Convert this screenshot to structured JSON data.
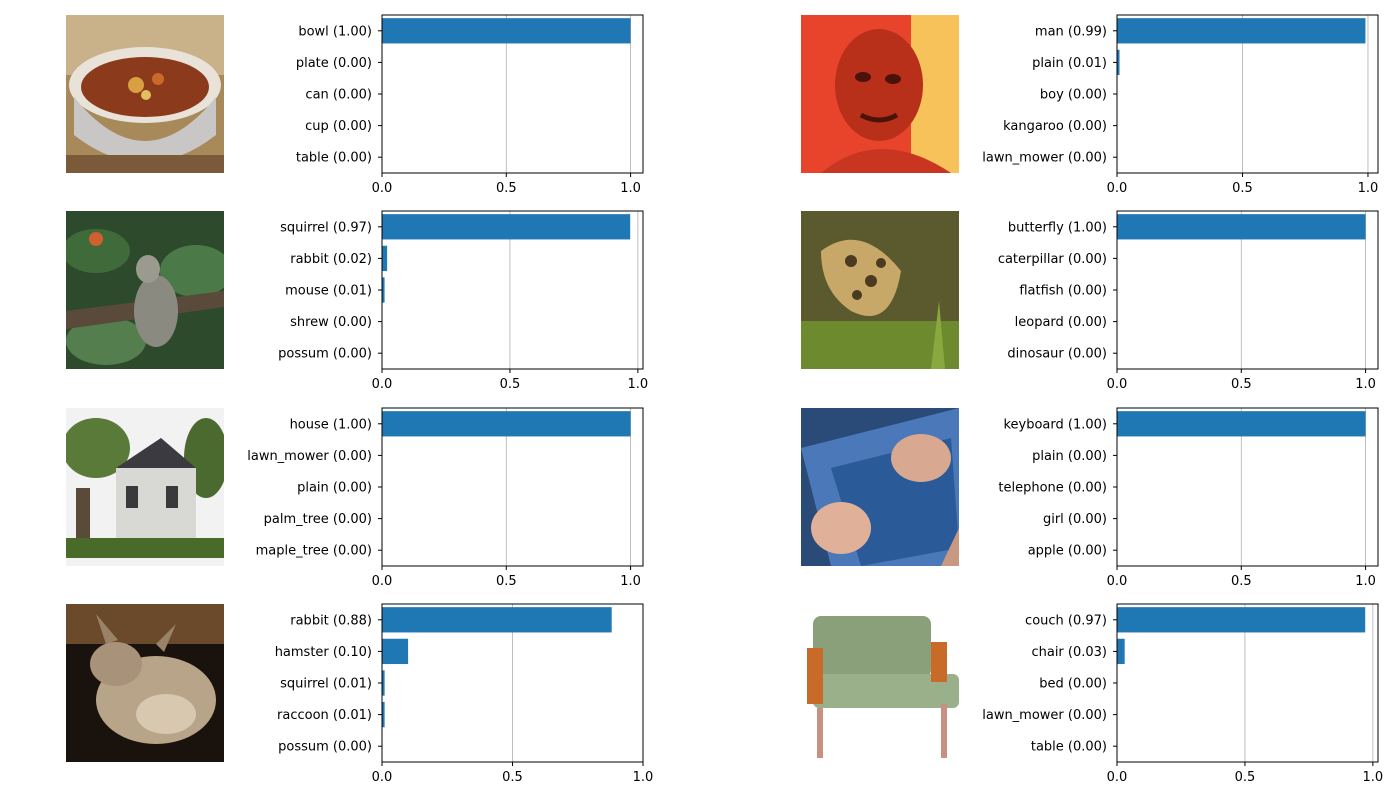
{
  "chart_data": [
    {
      "type": "bar",
      "orientation": "horizontal",
      "image_subject": "bowl of soup",
      "categories": [
        "bowl (1.00)",
        "plate (0.00)",
        "can (0.00)",
        "cup (0.00)",
        "table (0.00)"
      ],
      "values": [
        1.0,
        0.0,
        0.0,
        0.0,
        0.0
      ],
      "xlim": [
        0,
        1.05
      ],
      "xticks": [
        "0.0",
        "0.5",
        "1.0"
      ],
      "grid": "x",
      "bar_color": "#1f77b4"
    },
    {
      "type": "bar",
      "orientation": "horizontal",
      "image_subject": "man's face in red light",
      "categories": [
        "man (0.99)",
        "plain (0.01)",
        "boy (0.00)",
        "kangaroo (0.00)",
        "lawn_mower (0.00)"
      ],
      "values": [
        0.99,
        0.01,
        0.0,
        0.0,
        0.0
      ],
      "xlim": [
        0,
        1.04
      ],
      "xticks": [
        "0.0",
        "0.5",
        "1.0"
      ],
      "grid": "x",
      "bar_color": "#1f77b4"
    },
    {
      "type": "bar",
      "orientation": "horizontal",
      "image_subject": "squirrel among leaves",
      "categories": [
        "squirrel (0.97)",
        "rabbit (0.02)",
        "mouse (0.01)",
        "shrew (0.00)",
        "possum (0.00)"
      ],
      "values": [
        0.97,
        0.02,
        0.01,
        0.0,
        0.0
      ],
      "xlim": [
        0,
        1.02
      ],
      "xticks": [
        "0.0",
        "0.5",
        "1.0"
      ],
      "grid": "x",
      "bar_color": "#1f77b4"
    },
    {
      "type": "bar",
      "orientation": "horizontal",
      "image_subject": "butterfly on grass",
      "categories": [
        "butterfly (1.00)",
        "caterpillar (0.00)",
        "flatfish (0.00)",
        "leopard (0.00)",
        "dinosaur (0.00)"
      ],
      "values": [
        1.0,
        0.0,
        0.0,
        0.0,
        0.0
      ],
      "xlim": [
        0,
        1.05
      ],
      "xticks": [
        "0.0",
        "0.5",
        "1.0"
      ],
      "grid": "x",
      "bar_color": "#1f77b4"
    },
    {
      "type": "bar",
      "orientation": "horizontal",
      "image_subject": "house with trees",
      "categories": [
        "house (1.00)",
        "lawn_mower (0.00)",
        "plain (0.00)",
        "palm_tree (0.00)",
        "maple_tree (0.00)"
      ],
      "values": [
        1.0,
        0.0,
        0.0,
        0.0,
        0.0
      ],
      "xlim": [
        0,
        1.05
      ],
      "xticks": [
        "0.0",
        "0.5",
        "1.0"
      ],
      "grid": "x",
      "bar_color": "#1f77b4"
    },
    {
      "type": "bar",
      "orientation": "horizontal",
      "image_subject": "hands typing on keyboard",
      "categories": [
        "keyboard (1.00)",
        "plain (0.00)",
        "telephone (0.00)",
        "girl (0.00)",
        "apple (0.00)"
      ],
      "values": [
        1.0,
        0.0,
        0.0,
        0.0,
        0.0
      ],
      "xlim": [
        0,
        1.05
      ],
      "xticks": [
        "0.0",
        "0.5",
        "1.0"
      ],
      "grid": "x",
      "bar_color": "#1f77b4"
    },
    {
      "type": "bar",
      "orientation": "horizontal",
      "image_subject": "rabbit on dark background",
      "categories": [
        "rabbit (0.88)",
        "hamster (0.10)",
        "squirrel (0.01)",
        "raccoon (0.01)",
        "possum (0.00)"
      ],
      "values": [
        0.88,
        0.1,
        0.01,
        0.01,
        0.0
      ],
      "xlim": [
        0,
        1.0
      ],
      "xticks": [
        "0.0",
        "0.5",
        "1.0"
      ],
      "grid": "x",
      "bar_color": "#1f77b4"
    },
    {
      "type": "bar",
      "orientation": "horizontal",
      "image_subject": "green couch",
      "categories": [
        "couch (0.97)",
        "chair (0.03)",
        "bed (0.00)",
        "lawn_mower (0.00)",
        "table (0.00)"
      ],
      "values": [
        0.97,
        0.03,
        0.0,
        0.0,
        0.0
      ],
      "xlim": [
        0,
        1.02
      ],
      "xticks": [
        "0.0",
        "0.5",
        "1.0"
      ],
      "grid": "x",
      "bar_color": "#1f77b4"
    }
  ]
}
